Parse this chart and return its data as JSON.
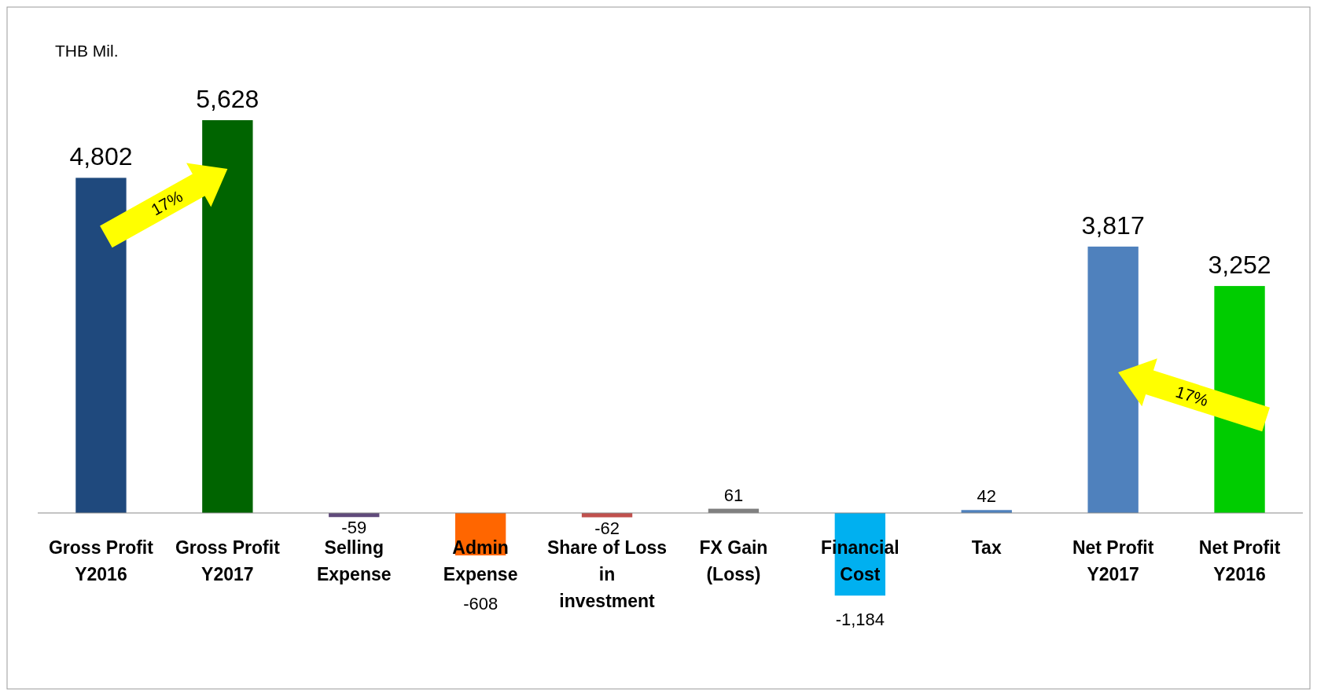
{
  "chart_data": {
    "type": "bar",
    "ylabel": "THB Mil.",
    "categories": [
      "Gross Profit\nY2016",
      "Gross Profit\nY2017",
      "Selling\nExpense",
      "Admin\nExpense",
      "Share of Loss\nin\ninvestment",
      "FX Gain\n(Loss)",
      "Financial\nCost",
      "Tax",
      "Net Profit\nY2017",
      "Net Profit\nY2016"
    ],
    "values": [
      4802,
      5628,
      -59,
      -608,
      -62,
      61,
      -1184,
      42,
      3817,
      3252
    ],
    "colors": [
      "#1f497d",
      "#006400",
      "#604a7b",
      "#ff6600",
      "#c0504d",
      "#808080",
      "#00b0f0",
      "#4f81bd",
      "#4f81bd",
      "#00cc00"
    ],
    "relative": false,
    "value_labels": [
      "4,802",
      "5,628",
      "-59",
      "-608",
      "-62",
      "61",
      "-1,184",
      "42",
      "3,817",
      "3,252"
    ],
    "annotations": [
      "17%",
      "17%"
    ]
  }
}
